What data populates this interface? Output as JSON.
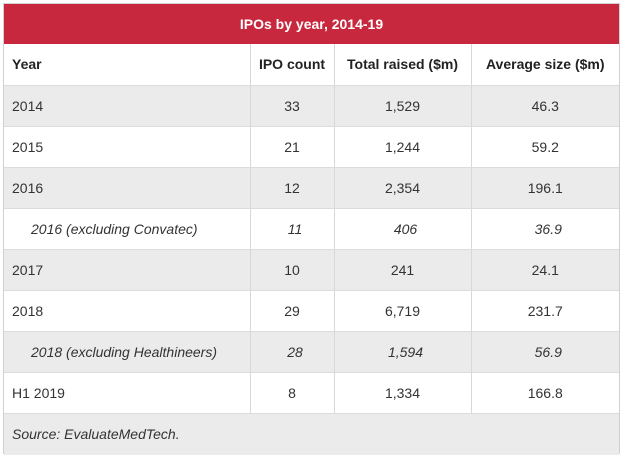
{
  "title": "IPOs by year, 2014-19",
  "columns": [
    "Year",
    "IPO count",
    "Total raised ($m)",
    "Average size ($m)"
  ],
  "rows": [
    {
      "year": "2014",
      "count": "33",
      "raised": "1,529",
      "avg": "46.3",
      "sub": false
    },
    {
      "year": "2015",
      "count": "21",
      "raised": "1,244",
      "avg": "59.2",
      "sub": false
    },
    {
      "year": "2016",
      "count": "12",
      "raised": "2,354",
      "avg": "196.1",
      "sub": false
    },
    {
      "year": "2016 (excluding Convatec)",
      "count": "11",
      "raised": "406",
      "avg": "36.9",
      "sub": true
    },
    {
      "year": "2017",
      "count": "10",
      "raised": "241",
      "avg": "24.1",
      "sub": false
    },
    {
      "year": "2018",
      "count": "29",
      "raised": "6,719",
      "avg": "231.7",
      "sub": false
    },
    {
      "year": "2018 (excluding Healthineers)",
      "count": "28",
      "raised": "1,594",
      "avg": "56.9",
      "sub": true
    },
    {
      "year": "H1 2019",
      "count": "8",
      "raised": "1,334",
      "avg": "166.8",
      "sub": false
    }
  ],
  "source": "Source: EvaluateMedTech.",
  "colors": {
    "header_bg": "#c8283d",
    "row_shade": "#ebebeb"
  }
}
